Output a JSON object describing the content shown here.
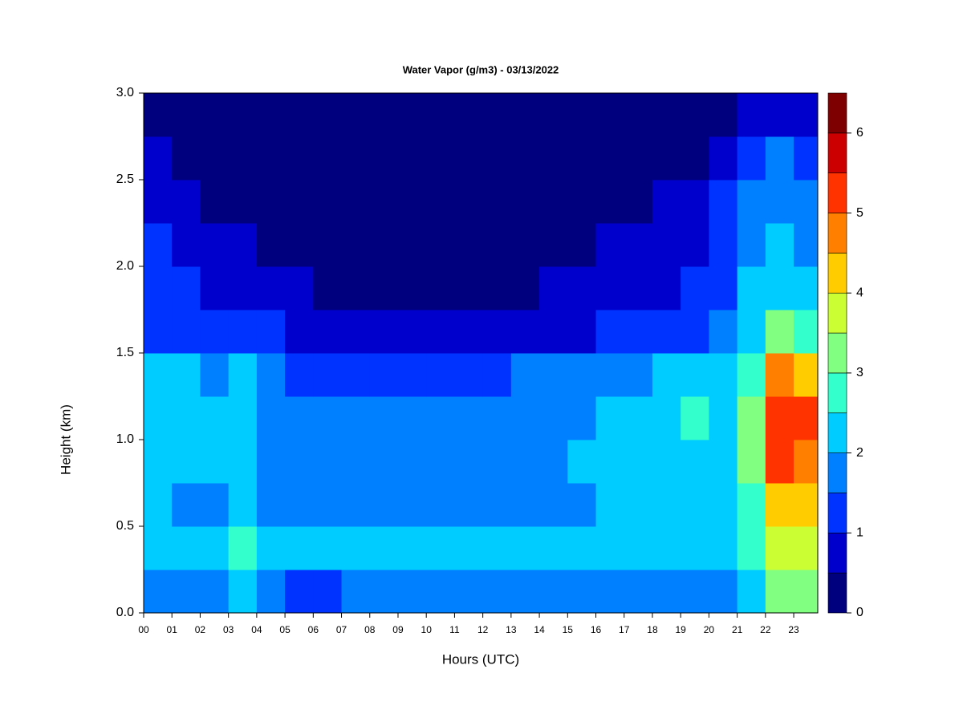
{
  "chart_data": {
    "type": "contour",
    "title": "Water Vapor (g/m3) - 03/13/2022",
    "x_label": "Hours (UTC)",
    "y_label": "Height (km)",
    "x": [
      0.5,
      1.5,
      2.5,
      3.5,
      4.5,
      5.5,
      6.5,
      7.5,
      8.5,
      9.5,
      10.5,
      11.5,
      12.5,
      13.5,
      14.5,
      15.5,
      16.5,
      17.5,
      18.5,
      19.5,
      20.5,
      21.5,
      22.5,
      23.5
    ],
    "y": [
      0.125,
      0.375,
      0.625,
      0.875,
      1.125,
      1.375,
      1.625,
      1.875,
      2.125,
      2.375,
      2.625,
      2.875
    ],
    "z": [
      [
        1.8,
        1.8,
        1.8,
        2.0,
        1.8,
        1.4,
        1.4,
        1.8,
        1.8,
        1.8,
        1.8,
        1.8,
        1.8,
        1.8,
        1.8,
        1.8,
        1.8,
        1.8,
        1.8,
        1.8,
        1.9,
        2.2,
        3.2,
        3.3
      ],
      [
        2.4,
        2.2,
        2.3,
        2.6,
        2.2,
        2.3,
        2.3,
        2.3,
        2.3,
        2.3,
        2.3,
        2.3,
        2.3,
        2.3,
        2.3,
        2.2,
        2.1,
        2.1,
        2.1,
        2.1,
        2.3,
        2.6,
        3.9,
        3.8
      ],
      [
        2.0,
        1.9,
        1.9,
        2.2,
        1.8,
        1.8,
        1.8,
        1.8,
        1.8,
        1.8,
        1.8,
        1.8,
        1.8,
        1.8,
        1.8,
        1.9,
        2.0,
        2.1,
        2.1,
        2.1,
        2.1,
        2.7,
        4.3,
        4.1
      ],
      [
        2.1,
        2.0,
        2.0,
        2.4,
        1.8,
        1.7,
        1.7,
        1.7,
        1.7,
        1.7,
        1.7,
        1.9,
        1.9,
        1.8,
        1.9,
        2.0,
        2.1,
        2.2,
        2.3,
        2.4,
        2.2,
        3.0,
        5.2,
        4.8
      ],
      [
        2.1,
        2.0,
        2.0,
        2.3,
        1.8,
        1.6,
        1.6,
        1.6,
        1.6,
        1.6,
        1.6,
        1.8,
        1.9,
        1.8,
        1.8,
        1.9,
        2.1,
        2.2,
        2.4,
        2.5,
        2.3,
        3.0,
        5.3,
        5.0
      ],
      [
        2.1,
        2.0,
        1.9,
        2.2,
        1.6,
        1.3,
        1.2,
        1.1,
        1.1,
        1.1,
        1.2,
        1.3,
        1.4,
        1.5,
        1.6,
        1.7,
        1.8,
        1.9,
        2.0,
        2.0,
        2.1,
        2.8,
        4.6,
        4.2
      ],
      [
        1.4,
        1.3,
        1.2,
        1.4,
        1.1,
        0.9,
        0.8,
        0.7,
        0.7,
        0.7,
        0.7,
        0.7,
        0.7,
        0.7,
        0.8,
        0.9,
        1.0,
        1.1,
        1.1,
        1.2,
        1.6,
        2.2,
        3.2,
        2.6
      ],
      [
        1.2,
        1.1,
        0.9,
        0.9,
        0.8,
        0.6,
        0.45,
        0.45,
        0.45,
        0.45,
        0.45,
        0.45,
        0.45,
        0.45,
        0.6,
        0.8,
        0.9,
        0.9,
        0.9,
        1.1,
        1.4,
        2.0,
        2.4,
        2.2
      ],
      [
        1.1,
        0.8,
        0.7,
        0.6,
        0.4,
        0.4,
        0.4,
        0.4,
        0.4,
        0.4,
        0.4,
        0.4,
        0.4,
        0.4,
        0.4,
        0.4,
        0.6,
        0.8,
        0.8,
        0.9,
        1.3,
        1.9,
        2.2,
        1.9
      ],
      [
        0.8,
        0.7,
        0.45,
        0.3,
        0.3,
        0.3,
        0.3,
        0.3,
        0.3,
        0.3,
        0.3,
        0.3,
        0.3,
        0.3,
        0.3,
        0.3,
        0.3,
        0.45,
        0.7,
        0.8,
        1.2,
        1.7,
        1.8,
        1.7
      ],
      [
        0.7,
        0.3,
        0.3,
        0.3,
        0.3,
        0.3,
        0.3,
        0.3,
        0.3,
        0.3,
        0.3,
        0.3,
        0.3,
        0.3,
        0.3,
        0.3,
        0.3,
        0.3,
        0.3,
        0.4,
        0.8,
        1.2,
        1.6,
        1.3
      ],
      [
        0.3,
        0.3,
        0.3,
        0.3,
        0.3,
        0.3,
        0.3,
        0.3,
        0.3,
        0.3,
        0.3,
        0.3,
        0.3,
        0.3,
        0.3,
        0.3,
        0.3,
        0.3,
        0.3,
        0.3,
        0.4,
        0.8,
        0.9,
        0.9
      ]
    ],
    "xlim": [
      0,
      23.85
    ],
    "ylim": [
      0,
      3
    ],
    "xticks": [
      {
        "value": 0,
        "label": "00"
      },
      {
        "value": 1,
        "label": "01"
      },
      {
        "value": 2,
        "label": "02"
      },
      {
        "value": 3,
        "label": "03"
      },
      {
        "value": 4,
        "label": "04"
      },
      {
        "value": 5,
        "label": "05"
      },
      {
        "value": 6,
        "label": "06"
      },
      {
        "value": 7,
        "label": "07"
      },
      {
        "value": 8,
        "label": "08"
      },
      {
        "value": 9,
        "label": "09"
      },
      10,
      11,
      12,
      13,
      14,
      15,
      16,
      17,
      18,
      19,
      20,
      21,
      22,
      23
    ],
    "yticks": [
      {
        "value": 0,
        "label": "0.0"
      },
      0.5,
      {
        "value": 1,
        "label": "1.0"
      },
      1.5,
      {
        "value": 2,
        "label": "2.0"
      },
      2.5,
      {
        "value": 3,
        "label": "3.0"
      }
    ],
    "levels": [
      0,
      0.5,
      1,
      1.5,
      2,
      2.5,
      3,
      3.5,
      4,
      4.5,
      5,
      5.5,
      6,
      6.5
    ],
    "colors": [
      "#00007f",
      "#0000cc",
      "#0033ff",
      "#0080ff",
      "#00ccff",
      "#33ffcc",
      "#80ff80",
      "#ccff33",
      "#ffcc00",
      "#ff8000",
      "#ff3300",
      "#cc0000",
      "#7f0000"
    ],
    "colorbar_ticks": [
      0,
      1,
      2,
      3,
      4,
      5,
      6
    ]
  }
}
